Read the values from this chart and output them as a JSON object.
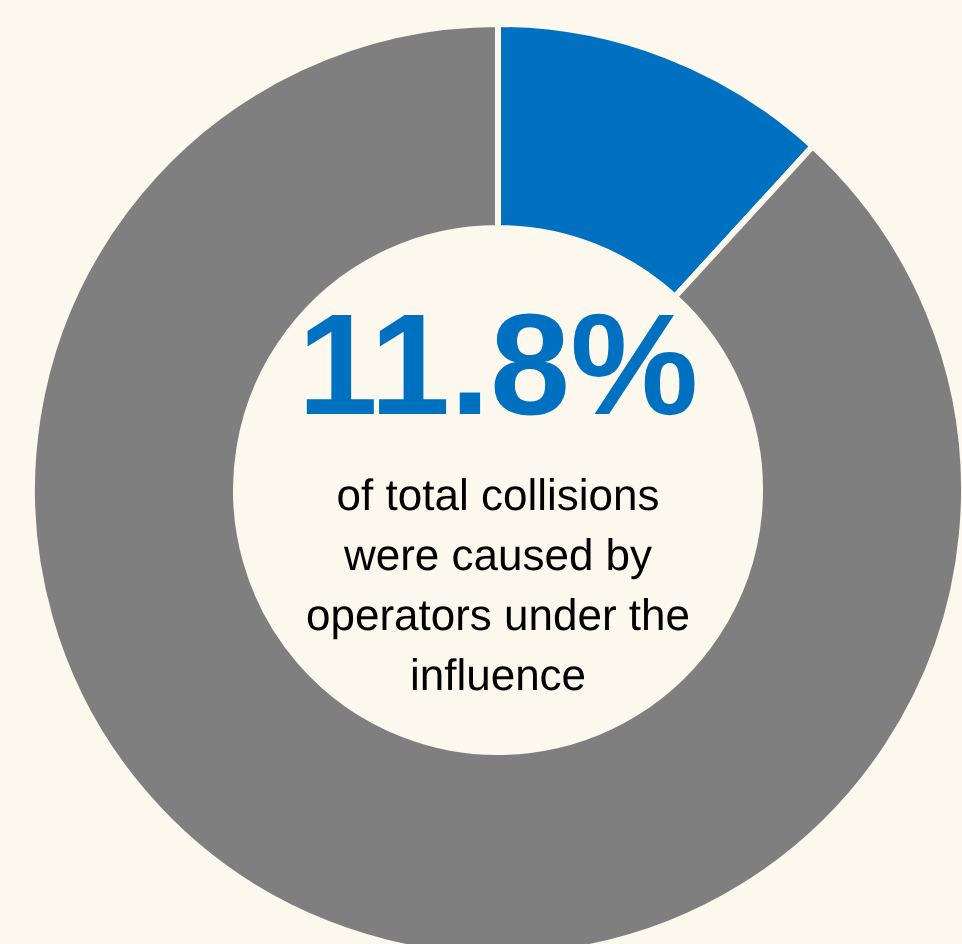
{
  "chart_data": {
    "type": "donut",
    "title": "11.8%",
    "annotations": [
      "of total collisions were caused by operators under the influence"
    ],
    "categories": [
      null,
      null
    ],
    "values": [
      11.8,
      88.2
    ],
    "colors": [
      "#0070c0",
      "#7f7f7f"
    ]
  }
}
